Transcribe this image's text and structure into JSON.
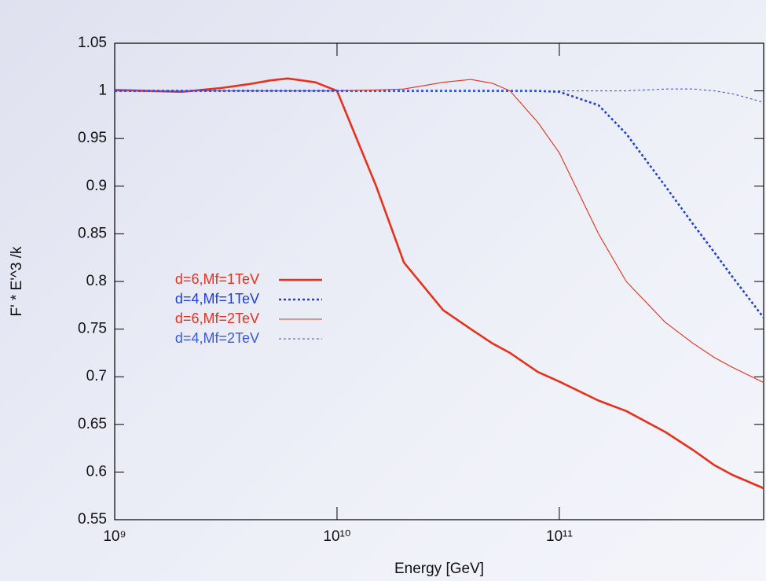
{
  "chart_data": {
    "type": "line",
    "x_label": "Energy [GeV]",
    "y_label": "F' * E'^3 /k",
    "xlog": true,
    "xlim": [
      1000000000,
      830000000000
    ],
    "xticks": [
      {
        "value": 1000000000,
        "label": "10⁹"
      },
      {
        "value": 10000000000,
        "label": "10¹⁰"
      },
      {
        "value": 100000000000,
        "label": "10¹¹"
      }
    ],
    "ylim": [
      0.55,
      1.05
    ],
    "yticks": [
      0.55,
      0.6,
      0.65,
      0.7,
      0.75,
      0.8,
      0.85,
      0.9,
      0.95,
      1,
      1.05
    ],
    "legend": "left",
    "x": [
      1000000000,
      2000000000,
      3000000000,
      4000000000,
      5000000000,
      6000000000,
      8000000000,
      10000000000,
      15000000000,
      20000000000,
      30000000000,
      40000000000,
      50000000000,
      60000000000,
      80000000000,
      100000000000,
      150000000000,
      200000000000,
      300000000000,
      400000000000,
      500000000000,
      600000000000,
      830000000000
    ],
    "series": [
      {
        "name": "d=6,Mf=1TeV",
        "color": "#e8311a",
        "dashed": false,
        "width": 2.6,
        "values": [
          1.001,
          0.999,
          1.003,
          1.007,
          1.011,
          1.013,
          1.009,
          1.0,
          0.9,
          0.82,
          0.77,
          0.75,
          0.735,
          0.725,
          0.705,
          0.695,
          0.675,
          0.664,
          0.642,
          0.623,
          0.607,
          0.597,
          0.583
        ]
      },
      {
        "name": "d=4,Mf=1TeV",
        "color": "#1f3fd8",
        "dashed": true,
        "width": 2.6,
        "values": [
          1.0,
          1.0,
          1.0,
          1.0,
          1.0,
          1.0,
          1.0,
          1.0,
          1.0,
          1.0,
          1.0,
          1.0,
          1.0,
          1.0,
          1.0,
          0.999,
          0.985,
          0.955,
          0.9,
          0.86,
          0.83,
          0.805,
          0.762
        ]
      },
      {
        "name": "d=6,Mf=2TeV",
        "color": "#e8311a",
        "dashed": false,
        "width": 1.1,
        "values": [
          1.0,
          1.0,
          1.0,
          1.0,
          1.0,
          1.0,
          1.0,
          1.0,
          1.001,
          1.002,
          1.009,
          1.012,
          1.008,
          1.0,
          0.967,
          0.935,
          0.85,
          0.8,
          0.757,
          0.735,
          0.72,
          0.71,
          0.694
        ]
      },
      {
        "name": "d=4,Mf=2TeV",
        "color": "#3a5ae0",
        "dashed": true,
        "width": 1.1,
        "values": [
          1.0,
          1.0,
          1.0,
          1.0,
          1.0,
          1.0,
          1.0,
          1.0,
          1.0,
          1.0,
          1.0,
          1.0,
          1.0,
          1.0,
          1.0,
          1.0,
          1.0,
          1.0,
          1.002,
          1.002,
          1.0,
          0.997,
          0.988
        ]
      }
    ]
  }
}
